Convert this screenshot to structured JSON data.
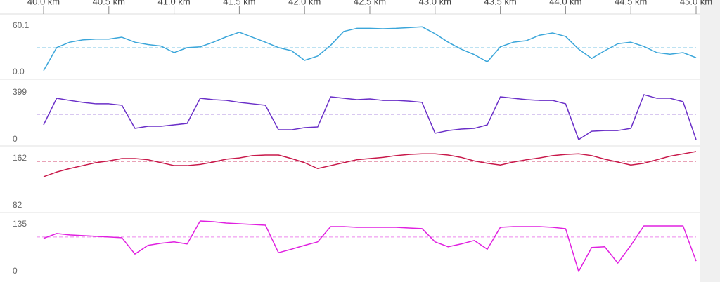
{
  "chart_data": [
    {
      "type": "line",
      "x": [
        40.0,
        40.1,
        40.2,
        40.3,
        40.4,
        40.5,
        40.6,
        40.7,
        40.8,
        40.9,
        41.0,
        41.1,
        41.2,
        41.3,
        41.4,
        41.5,
        41.6,
        41.7,
        41.8,
        41.9,
        42.0,
        42.1,
        42.2,
        42.3,
        42.4,
        42.5,
        42.6,
        42.7,
        42.8,
        42.9,
        43.0,
        43.1,
        43.2,
        43.3,
        43.4,
        43.5,
        43.6,
        43.7,
        43.8,
        43.9,
        44.0,
        44.1,
        44.2,
        44.3,
        44.4,
        44.5,
        44.6,
        44.7,
        44.8,
        44.9,
        45.0
      ],
      "xlim": [
        40,
        45
      ],
      "xticks": [
        {
          "value": 40,
          "label": "40.0 km"
        },
        {
          "value": 40.5,
          "label": "40.5 km"
        },
        {
          "value": 41,
          "label": "41.0 km"
        },
        {
          "value": 41.5,
          "label": "41.5 km"
        },
        {
          "value": 42,
          "label": "42.0 km"
        },
        {
          "value": 42.5,
          "label": "42.5 km"
        },
        {
          "value": 43,
          "label": "43.0 km"
        },
        {
          "value": 43.5,
          "label": "43.5 km"
        },
        {
          "value": 44,
          "label": "44.0 km"
        },
        {
          "value": 44.5,
          "label": "44.5 km"
        },
        {
          "value": 45,
          "label": "45.0 km"
        }
      ],
      "values": [
        2,
        32,
        39,
        42,
        43,
        43,
        45.5,
        39,
        36,
        34,
        25.5,
        32,
        33,
        39,
        46,
        52,
        45.5,
        39,
        32,
        28,
        15.5,
        21,
        35,
        53,
        57,
        57,
        56.5,
        57,
        58,
        59,
        50,
        39,
        30,
        23,
        13.5,
        33,
        39,
        41,
        48,
        51,
        46.5,
        30,
        18,
        28,
        37,
        39,
        33.5,
        25.5,
        23.5,
        25.5,
        19
      ],
      "color": "#3ba6da",
      "average": 32,
      "ylim": [
        -8.2,
        75.6
      ],
      "yticks": [
        {
          "value": 0,
          "label": "0.0"
        },
        60.1
      ]
    },
    {
      "type": "line",
      "x": [
        40.0,
        40.1,
        40.2,
        40.3,
        40.4,
        40.5,
        40.6,
        40.7,
        40.8,
        40.9,
        41.0,
        41.1,
        41.2,
        41.3,
        41.4,
        41.5,
        41.6,
        41.7,
        41.8,
        41.9,
        42.0,
        42.1,
        42.2,
        42.3,
        42.4,
        42.5,
        42.6,
        42.7,
        42.8,
        42.9,
        43.0,
        43.1,
        43.2,
        43.3,
        43.4,
        43.5,
        43.6,
        43.7,
        43.8,
        43.9,
        44.0,
        44.1,
        44.2,
        44.3,
        44.4,
        44.5,
        44.6,
        44.7,
        44.8,
        44.9,
        45.0
      ],
      "xlim": [
        40,
        45
      ],
      "values": [
        125,
        351,
        333,
        316,
        304,
        304,
        292,
        95,
        113,
        113,
        125,
        137,
        351,
        339,
        333,
        316,
        304,
        292,
        83,
        83,
        101,
        107,
        363,
        351,
        339,
        345,
        333,
        333,
        327,
        316,
        54,
        77,
        89,
        95,
        125,
        363,
        351,
        339,
        333,
        333,
        304,
        0,
        71,
        77,
        77,
        95,
        381,
        351,
        351,
        322,
        0
      ],
      "color": "#6a2fc8",
      "average": 214,
      "ylim": [
        -47.6,
        506
      ],
      "yticks": [
        0,
        399
      ]
    },
    {
      "type": "line",
      "x": [
        40.0,
        40.1,
        40.2,
        40.3,
        40.4,
        40.5,
        40.6,
        40.7,
        40.8,
        40.9,
        41.0,
        41.1,
        41.2,
        41.3,
        41.4,
        41.5,
        41.6,
        41.7,
        41.8,
        41.9,
        42.0,
        42.1,
        42.2,
        42.3,
        42.4,
        42.5,
        42.6,
        42.7,
        42.8,
        42.9,
        43.0,
        43.1,
        43.2,
        43.3,
        43.4,
        43.5,
        43.6,
        43.7,
        43.8,
        43.9,
        44.0,
        44.1,
        44.2,
        44.3,
        44.4,
        44.5,
        44.6,
        44.7,
        44.8,
        44.9,
        45.0
      ],
      "xlim": [
        40,
        45
      ],
      "values": [
        131,
        139,
        145,
        150,
        155,
        158,
        162,
        162,
        160,
        155,
        150,
        150,
        152,
        156,
        161,
        163,
        167,
        168,
        168,
        162,
        155,
        145,
        150,
        155,
        160,
        162,
        164,
        167,
        169,
        170,
        170,
        168,
        164,
        158,
        154,
        151,
        156,
        160,
        163,
        167,
        169,
        170,
        167,
        161,
        156,
        151,
        154,
        160,
        166,
        170,
        174
      ],
      "color": "#c8184a",
      "average": 157,
      "ylim": [
        71.3,
        182.3
      ],
      "yticks": [
        82,
        162
      ]
    },
    {
      "type": "line",
      "x": [
        40.0,
        40.1,
        40.2,
        40.3,
        40.4,
        40.5,
        40.6,
        40.7,
        40.8,
        40.9,
        41.0,
        41.1,
        41.2,
        41.3,
        41.4,
        41.5,
        41.6,
        41.7,
        41.8,
        41.9,
        42.0,
        42.1,
        42.2,
        42.3,
        42.4,
        42.5,
        42.6,
        42.7,
        42.8,
        42.9,
        43.0,
        43.1,
        43.2,
        43.3,
        43.4,
        43.5,
        43.6,
        43.7,
        43.8,
        43.9,
        44.0,
        44.1,
        44.2,
        44.3,
        44.4,
        44.5,
        44.6,
        44.7,
        44.8,
        44.9,
        45.0
      ],
      "xlim": [
        40,
        45
      ],
      "values": [
        95,
        109,
        105,
        103,
        101,
        99,
        97,
        50,
        75,
        81,
        85,
        79,
        145,
        143,
        139,
        137,
        135,
        133,
        54,
        64,
        75,
        85,
        129,
        129,
        127,
        127,
        127,
        127,
        125,
        123,
        85,
        71,
        79,
        89,
        64,
        127,
        129,
        129,
        129,
        127,
        123,
        0,
        69,
        71,
        24,
        75,
        131,
        131,
        131,
        131,
        30
      ],
      "color": "#e020e0",
      "average": 99,
      "ylim": [
        -20.2,
        167.2
      ],
      "yticks": [
        0,
        135
      ]
    }
  ]
}
